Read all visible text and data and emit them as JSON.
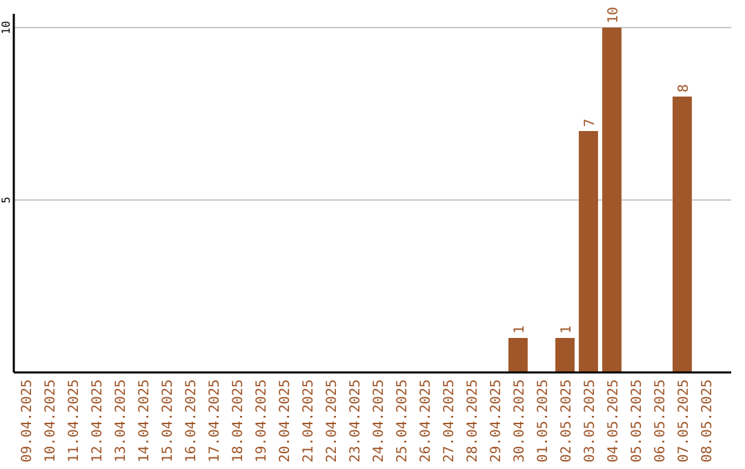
{
  "chart_data": {
    "type": "bar",
    "categories": [
      "09.04.2025",
      "10.04.2025",
      "11.04.2025",
      "12.04.2025",
      "13.04.2025",
      "14.04.2025",
      "15.04.2025",
      "16.04.2025",
      "17.04.2025",
      "18.04.2025",
      "19.04.2025",
      "20.04.2025",
      "21.04.2025",
      "22.04.2025",
      "23.04.2025",
      "24.04.2025",
      "25.04.2025",
      "26.04.2025",
      "27.04.2025",
      "28.04.2025",
      "29.04.2025",
      "30.04.2025",
      "01.05.2025",
      "02.05.2025",
      "03.05.2025",
      "04.05.2025",
      "05.05.2025",
      "06.05.2025",
      "07.05.2025",
      "08.05.2025"
    ],
    "values": [
      0,
      0,
      0,
      0,
      0,
      0,
      0,
      0,
      0,
      0,
      0,
      0,
      0,
      0,
      0,
      0,
      0,
      0,
      0,
      0,
      0,
      1,
      0,
      1,
      7,
      10,
      0,
      0,
      8,
      0
    ],
    "value_labels": [
      null,
      null,
      null,
      null,
      null,
      null,
      null,
      null,
      null,
      null,
      null,
      null,
      null,
      null,
      null,
      null,
      null,
      null,
      null,
      null,
      null,
      "1",
      null,
      "1",
      "7",
      "10",
      null,
      null,
      "8",
      null
    ],
    "color": "#a0572a",
    "ylim": [
      0,
      10
    ],
    "yticks": [
      5,
      10
    ],
    "grid": "y"
  }
}
